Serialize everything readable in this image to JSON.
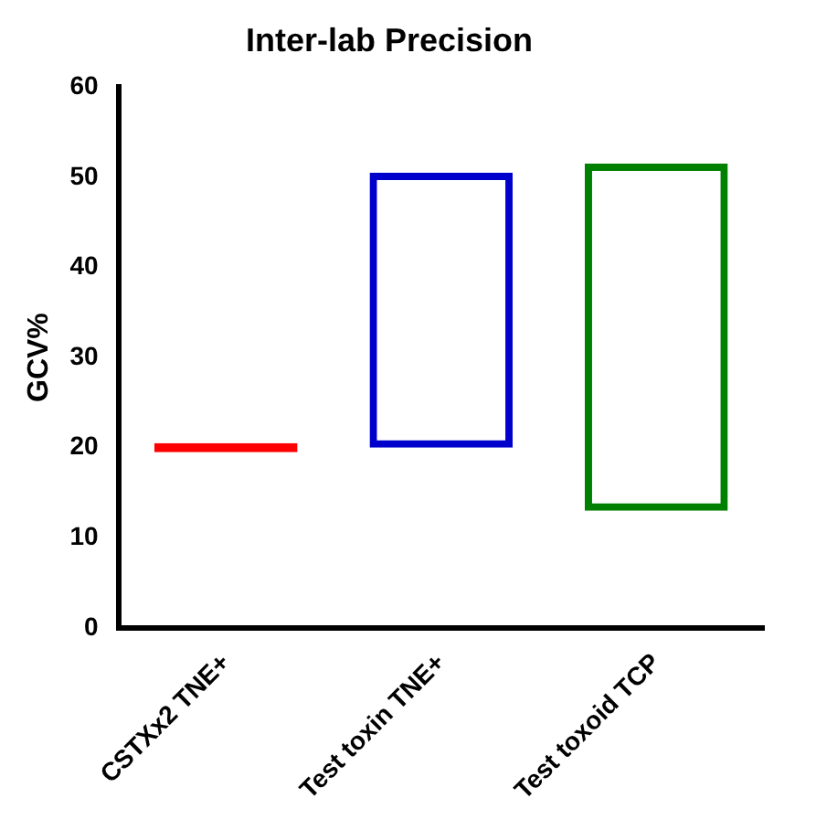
{
  "chart_data": {
    "type": "bar",
    "title": "Inter-lab Precision",
    "ylabel": "GCV%",
    "categories": [
      "CSTXx2 TNE+",
      "Test toxin TNE+",
      "Test toxoid TCP"
    ],
    "base": [
      19.5,
      20,
      13
    ],
    "values": [
      1,
      30.5,
      38.5
    ],
    "colors": [
      "#ff0000",
      "#0000cc",
      "#008000"
    ],
    "ylim": [
      0,
      60
    ],
    "yticks": [
      0,
      10,
      20,
      30,
      40,
      50,
      60
    ],
    "grid": false,
    "legend": false
  }
}
